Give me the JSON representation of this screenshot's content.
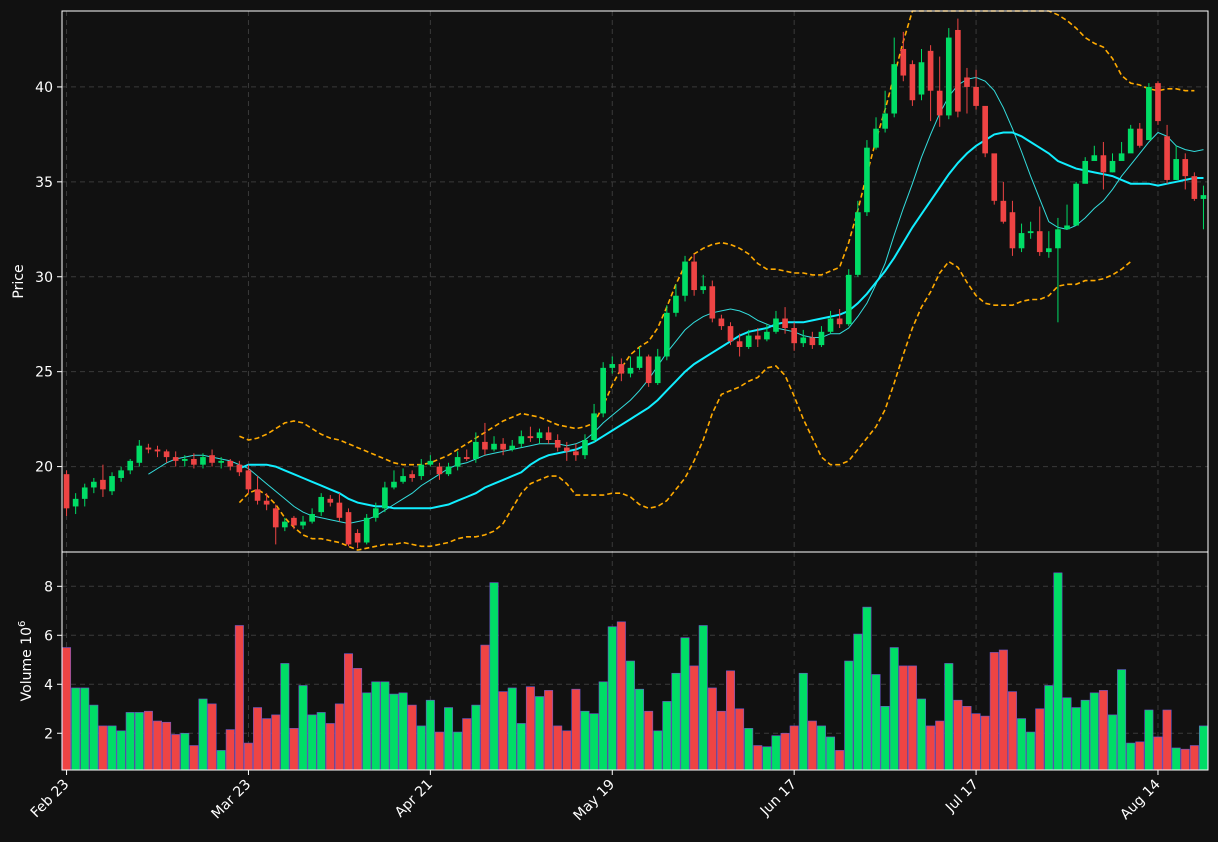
{
  "chart_data": [
    {
      "type": "candlestick",
      "panel": "price",
      "ylabel": "Price",
      "ylim": [
        15.5,
        44
      ],
      "y_ticks": [
        20,
        25,
        30,
        35,
        40
      ],
      "grid": true,
      "colors": {
        "background": "#111111",
        "up": "#00dd66",
        "down": "#ee4444",
        "sma_short": "#33dddd",
        "sma_long": "#11eeff",
        "bollinger": "#ffaa00",
        "grid": "#3a3a3a",
        "text": "#ffffff"
      },
      "x_tick_labels": [
        "Feb 23",
        "Mar 23",
        "Apr 21",
        "May 19",
        "Jun 17",
        "Jul 17",
        "Aug 14"
      ],
      "x_tick_indices": [
        0,
        20,
        40,
        60,
        80,
        100,
        120
      ],
      "closes": [
        17.8,
        18.3,
        18.9,
        19.2,
        18.8,
        19.5,
        19.8,
        20.3,
        21.1,
        20.9,
        20.8,
        20.5,
        20.3,
        20.4,
        20.1,
        20.5,
        20.2,
        20.3,
        20.0,
        19.7,
        18.8,
        18.2,
        18.0,
        16.8,
        17.1,
        16.9,
        17.1,
        17.5,
        18.4,
        18.1,
        17.3,
        15.9,
        16.0,
        17.3,
        17.8,
        18.9,
        19.2,
        19.5,
        19.4,
        20.1,
        20.3,
        19.6,
        20.0,
        20.5,
        20.4,
        21.3,
        20.9,
        21.2,
        20.9,
        21.1,
        21.6,
        21.5,
        21.8,
        21.4,
        21.0,
        20.8,
        20.6,
        21.4,
        22.8,
        25.2,
        25.4,
        24.9,
        25.2,
        25.8,
        24.4,
        25.8,
        28.1,
        29.0,
        30.8,
        29.3,
        29.5,
        27.8,
        27.4,
        26.6,
        26.3,
        26.9,
        26.7,
        27.1,
        27.8,
        27.3,
        26.5,
        26.8,
        26.4,
        27.1,
        27.8,
        27.5,
        30.1,
        33.4,
        36.8,
        37.8,
        38.6,
        41.2,
        40.6,
        39.3,
        41.3,
        39.8,
        38.5,
        42.6,
        38.7,
        40.0,
        39.0,
        36.5,
        34.0,
        32.9,
        31.5,
        32.3,
        32.4,
        31.3,
        31.5,
        32.5,
        32.7,
        34.9,
        36.1,
        36.4,
        35.5,
        36.1,
        36.5,
        37.8,
        36.9,
        40.0,
        38.2,
        35.1,
        36.2,
        35.3,
        34.1,
        34.3
      ],
      "opens": [
        19.6,
        17.9,
        18.3,
        18.9,
        19.3,
        18.7,
        19.4,
        19.8,
        20.2,
        21.0,
        20.9,
        20.8,
        20.5,
        20.3,
        20.4,
        20.1,
        20.6,
        20.2,
        20.3,
        20.1,
        19.8,
        18.8,
        18.2,
        17.8,
        16.8,
        17.3,
        16.9,
        17.1,
        17.6,
        18.3,
        18.1,
        17.6,
        16.5,
        16.0,
        17.3,
        17.8,
        18.9,
        19.2,
        19.6,
        19.5,
        20.1,
        20.0,
        19.6,
        20.0,
        20.5,
        20.4,
        21.3,
        20.9,
        21.2,
        20.9,
        21.2,
        21.6,
        21.5,
        21.8,
        21.4,
        21.0,
        20.8,
        20.6,
        21.4,
        22.8,
        25.2,
        25.4,
        24.9,
        25.2,
        25.8,
        24.4,
        25.8,
        28.1,
        29.0,
        30.8,
        29.3,
        29.5,
        27.8,
        27.4,
        26.6,
        26.3,
        26.9,
        26.7,
        27.1,
        27.8,
        27.3,
        26.5,
        26.8,
        26.4,
        27.1,
        27.8,
        27.5,
        30.1,
        33.4,
        36.8,
        37.8,
        38.6,
        42.0,
        41.2,
        39.6,
        41.9,
        39.8,
        38.5,
        43.0,
        40.5,
        40.0,
        39.0,
        36.5,
        34.0,
        33.4,
        31.5,
        32.3,
        32.4,
        31.3,
        31.5,
        32.5,
        32.7,
        34.9,
        36.1,
        36.4,
        35.5,
        36.1,
        36.5,
        37.8,
        37.2,
        40.2,
        37.4,
        35.1,
        36.2,
        35.3,
        34.1,
        34.3
      ],
      "highs": [
        19.8,
        18.6,
        19.1,
        19.4,
        20.1,
        19.7,
        20.0,
        20.4,
        21.4,
        21.2,
        21.1,
        20.9,
        20.8,
        20.6,
        20.7,
        20.7,
        20.9,
        20.5,
        20.4,
        20.3,
        20.1,
        19.5,
        18.6,
        18.0,
        17.3,
        17.4,
        17.4,
        17.8,
        18.6,
        18.5,
        18.6,
        17.8,
        16.7,
        17.5,
        18.1,
        19.2,
        19.8,
        19.9,
        19.8,
        20.4,
        20.6,
        20.2,
        20.2,
        20.8,
        20.9,
        21.8,
        22.3,
        21.6,
        21.5,
        21.4,
        21.9,
        22.1,
        22.0,
        22.1,
        21.7,
        21.3,
        21.2,
        21.7,
        23.3,
        25.5,
        25.8,
        25.7,
        25.8,
        26.3,
        25.9,
        26.2,
        28.5,
        29.6,
        31.1,
        31.2,
        30.1,
        29.8,
        28.0,
        27.6,
        27.0,
        27.2,
        27.3,
        27.5,
        28.2,
        28.4,
        27.6,
        27.2,
        27.1,
        27.4,
        28.2,
        28.3,
        30.4,
        34.0,
        37.2,
        38.4,
        39.8,
        42.6,
        42.9,
        41.4,
        42.0,
        42.2,
        41.6,
        43.1,
        43.6,
        41.0,
        40.9,
        38.1,
        36.3,
        35.0,
        34.0,
        32.8,
        32.9,
        33.7,
        32.4,
        33.1,
        33.8,
        35.0,
        36.3,
        36.9,
        37.1,
        36.5,
        37.1,
        38.0,
        38.1,
        40.2,
        40.3,
        38.0,
        36.9,
        36.5,
        35.5,
        34.8
      ],
      "lows": [
        17.4,
        17.5,
        17.9,
        18.6,
        18.4,
        18.5,
        19.2,
        19.6,
        20.0,
        20.7,
        20.5,
        20.2,
        20.0,
        20.0,
        19.9,
        19.9,
        20.0,
        19.9,
        19.8,
        19.5,
        18.6,
        18.0,
        17.7,
        15.9,
        16.6,
        16.7,
        16.7,
        17.0,
        17.4,
        17.9,
        17.1,
        15.8,
        15.7,
        15.9,
        17.1,
        17.6,
        18.8,
        19.1,
        19.2,
        19.3,
        20.0,
        19.3,
        19.5,
        19.8,
        20.3,
        20.2,
        20.6,
        20.8,
        20.6,
        20.8,
        21.0,
        21.3,
        21.2,
        21.2,
        20.8,
        20.3,
        20.3,
        20.4,
        21.3,
        22.6,
        24.9,
        24.5,
        24.7,
        25.1,
        24.2,
        24.3,
        25.6,
        27.9,
        28.7,
        29.0,
        29.1,
        27.6,
        27.2,
        26.4,
        25.8,
        26.2,
        26.3,
        26.6,
        27.0,
        27.0,
        26.1,
        26.3,
        26.2,
        26.3,
        27.0,
        27.3,
        27.4,
        30.0,
        33.2,
        36.7,
        37.6,
        38.4,
        40.3,
        39.0,
        39.3,
        38.2,
        37.9,
        38.3,
        38.4,
        38.6,
        38.8,
        36.3,
        33.8,
        32.8,
        31.1,
        31.3,
        32.0,
        31.1,
        31.0,
        27.6,
        32.5,
        34.6,
        35.6,
        36.3,
        34.6,
        35.5,
        36.3,
        37.5,
        36.8,
        38.0,
        38.0,
        34.9,
        35.1,
        34.6,
        34.0,
        32.5
      ],
      "volumes": [
        5.5,
        3.85,
        3.85,
        3.15,
        2.3,
        2.3,
        2.1,
        2.85,
        2.85,
        2.9,
        2.5,
        2.45,
        1.95,
        2.0,
        1.5,
        3.4,
        3.2,
        1.3,
        2.15,
        6.4,
        1.6,
        3.05,
        2.6,
        2.75,
        4.85,
        2.2,
        3.95,
        2.75,
        2.85,
        2.4,
        3.2,
        5.25,
        4.65,
        3.65,
        4.1,
        4.1,
        3.6,
        3.65,
        3.15,
        2.3,
        3.35,
        2.05,
        3.05,
        2.05,
        2.6,
        3.15,
        5.6,
        8.15,
        3.7,
        3.85,
        2.4,
        3.9,
        3.5,
        3.75,
        2.3,
        2.1,
        3.8,
        2.9,
        2.8,
        4.1,
        6.35,
        6.55,
        4.95,
        3.8,
        2.9,
        2.1,
        3.3,
        4.45,
        5.9,
        4.75,
        6.4,
        3.85,
        2.9,
        4.55,
        3.0,
        2.2,
        1.5,
        1.45,
        1.9,
        2.0,
        2.3,
        4.45,
        2.5,
        2.3,
        1.85,
        1.3,
        4.95,
        6.05,
        7.15,
        4.4,
        3.1,
        5.5,
        4.75,
        4.75,
        3.4,
        2.3,
        2.5,
        4.85,
        3.35,
        3.1,
        2.8,
        2.7,
        5.3,
        5.4,
        3.7,
        2.6,
        2.05,
        3.0,
        3.95,
        8.55,
        3.45,
        3.05,
        3.35,
        3.65,
        3.75,
        2.75,
        4.6,
        1.6,
        1.65,
        2.95,
        1.85,
        2.95,
        1.4,
        1.35,
        1.5,
        2.3
      ],
      "sma_short": [
        null,
        null,
        null,
        null,
        null,
        null,
        null,
        null,
        null,
        19.6,
        19.9,
        20.2,
        20.4,
        20.5,
        20.6,
        20.6,
        20.5,
        20.4,
        20.3,
        20.1,
        19.9,
        19.5,
        19.1,
        18.7,
        18.3,
        17.9,
        17.6,
        17.4,
        17.3,
        17.2,
        17.1,
        17.0,
        17.1,
        17.2,
        17.4,
        17.7,
        18.0,
        18.3,
        18.6,
        19.0,
        19.3,
        19.6,
        19.9,
        20.1,
        20.2,
        20.4,
        20.6,
        20.7,
        20.8,
        20.9,
        21.0,
        21.1,
        21.2,
        21.2,
        21.2,
        21.1,
        21.2,
        21.4,
        21.8,
        22.3,
        22.7,
        23.1,
        23.5,
        24.0,
        24.6,
        25.3,
        26.0,
        26.6,
        27.2,
        27.6,
        27.9,
        28.1,
        28.2,
        28.3,
        28.2,
        28.0,
        27.7,
        27.5,
        27.3,
        27.2,
        27.1,
        26.9,
        26.8,
        26.8,
        27.0,
        27.0,
        27.3,
        27.9,
        28.6,
        29.6,
        30.7,
        32.2,
        33.6,
        34.9,
        36.3,
        37.5,
        38.6,
        39.5,
        40.1,
        40.4,
        40.5,
        40.3,
        39.8,
        38.9,
        37.8,
        36.6,
        35.3,
        34.1,
        32.9,
        32.6,
        32.5,
        32.7,
        33.1,
        33.6,
        34.0,
        34.6,
        35.3,
        35.9,
        36.5,
        37.1,
        37.6,
        37.4,
        36.9,
        36.7,
        36.6,
        36.7
      ],
      "sma_long": [
        null,
        null,
        null,
        null,
        null,
        null,
        null,
        null,
        null,
        null,
        null,
        null,
        null,
        null,
        null,
        null,
        null,
        null,
        null,
        19.9,
        20.1,
        20.1,
        20.1,
        20.0,
        19.8,
        19.6,
        19.4,
        19.2,
        19.0,
        18.8,
        18.6,
        18.3,
        18.1,
        18.0,
        17.9,
        17.9,
        17.8,
        17.8,
        17.8,
        17.8,
        17.8,
        17.9,
        18.0,
        18.2,
        18.4,
        18.6,
        18.9,
        19.1,
        19.3,
        19.5,
        19.7,
        20.1,
        20.4,
        20.6,
        20.7,
        20.8,
        20.9,
        21.1,
        21.3,
        21.6,
        21.9,
        22.2,
        22.5,
        22.8,
        23.1,
        23.5,
        24.0,
        24.5,
        25.0,
        25.4,
        25.7,
        26.0,
        26.3,
        26.6,
        26.9,
        27.1,
        27.2,
        27.3,
        27.5,
        27.6,
        27.6,
        27.6,
        27.7,
        27.8,
        27.9,
        28.0,
        28.2,
        28.6,
        29.1,
        29.7,
        30.3,
        31.0,
        31.8,
        32.6,
        33.3,
        34.0,
        34.7,
        35.4,
        36.0,
        36.5,
        36.9,
        37.2,
        37.5,
        37.6,
        37.6,
        37.4,
        37.1,
        36.8,
        36.5,
        36.1,
        35.9,
        35.7,
        35.6,
        35.5,
        35.4,
        35.3,
        35.1,
        34.9,
        34.9,
        34.9,
        34.8,
        34.9,
        35.0,
        35.1,
        35.2,
        35.2
      ],
      "bb_upper": [
        null,
        null,
        null,
        null,
        null,
        null,
        null,
        null,
        null,
        null,
        null,
        null,
        null,
        null,
        null,
        null,
        null,
        null,
        null,
        21.6,
        21.4,
        21.5,
        21.7,
        22.0,
        22.3,
        22.4,
        22.3,
        22.0,
        21.7,
        21.5,
        21.4,
        21.2,
        21.0,
        20.8,
        20.6,
        20.4,
        20.2,
        20.1,
        20.1,
        20.1,
        20.2,
        20.4,
        20.6,
        20.9,
        21.2,
        21.5,
        21.8,
        22.1,
        22.4,
        22.6,
        22.8,
        22.7,
        22.6,
        22.4,
        22.2,
        22.1,
        22.0,
        22.1,
        22.3,
        23.2,
        24.3,
        25.2,
        25.9,
        26.3,
        26.6,
        27.3,
        28.4,
        29.6,
        30.6,
        31.2,
        31.5,
        31.7,
        31.8,
        31.7,
        31.5,
        31.2,
        30.7,
        30.4,
        30.4,
        30.3,
        30.2,
        30.2,
        30.1,
        30.1,
        30.3,
        30.5,
        31.8,
        33.5,
        35.4,
        37.2,
        38.8,
        40.6,
        42.4,
        44.0,
        45.5,
        46.7,
        47.6,
        48.2,
        48.5,
        48.5,
        48.3,
        47.8,
        47.1,
        46.2,
        45.3,
        44.8,
        44.5,
        44.2,
        44.0,
        43.8,
        43.5,
        43.1,
        42.6,
        42.3,
        42.1,
        41.5,
        40.6,
        40.2,
        40.1,
        39.9,
        39.8,
        39.9,
        39.9,
        39.8,
        39.8
      ],
      "bb_lower": [
        null,
        null,
        null,
        null,
        null,
        null,
        null,
        null,
        null,
        null,
        null,
        null,
        null,
        null,
        null,
        null,
        null,
        null,
        null,
        18.1,
        18.6,
        18.8,
        18.5,
        18.0,
        17.3,
        16.8,
        16.4,
        16.2,
        16.2,
        16.1,
        16.0,
        15.8,
        15.6,
        15.7,
        15.8,
        15.9,
        15.9,
        16.0,
        15.9,
        15.8,
        15.8,
        15.9,
        16.0,
        16.2,
        16.3,
        16.3,
        16.4,
        16.6,
        17.0,
        17.8,
        18.6,
        19.1,
        19.3,
        19.5,
        19.5,
        19.1,
        18.5,
        18.5,
        18.5,
        18.5,
        18.6,
        18.6,
        18.4,
        18.0,
        17.8,
        17.9,
        18.2,
        18.8,
        19.4,
        20.3,
        21.4,
        22.8,
        23.8,
        24.0,
        24.2,
        24.5,
        24.7,
        25.2,
        25.3,
        24.8,
        23.7,
        22.5,
        21.5,
        20.5,
        20.1,
        20.1,
        20.3,
        20.9,
        21.5,
        22.1,
        23.0,
        24.4,
        25.9,
        27.3,
        28.4,
        29.2,
        30.2,
        30.8,
        30.5,
        29.7,
        29.0,
        28.6,
        28.5,
        28.5,
        28.5,
        28.7,
        28.8,
        28.8,
        29.0,
        29.5,
        29.6,
        29.6,
        29.8,
        29.8,
        29.9,
        30.1,
        30.4,
        30.8
      ]
    },
    {
      "type": "bar",
      "panel": "volume",
      "ylabel": "Volume  10",
      "ylabel_superscript": "6",
      "ylim": [
        0.5,
        9.4
      ],
      "y_ticks": [
        2,
        4,
        6,
        8
      ],
      "grid": true,
      "x_tick_labels": [
        "Feb 23",
        "Mar 23",
        "Apr 21",
        "May 19",
        "Jun 17",
        "Jul 17",
        "Aug 14"
      ]
    }
  ]
}
